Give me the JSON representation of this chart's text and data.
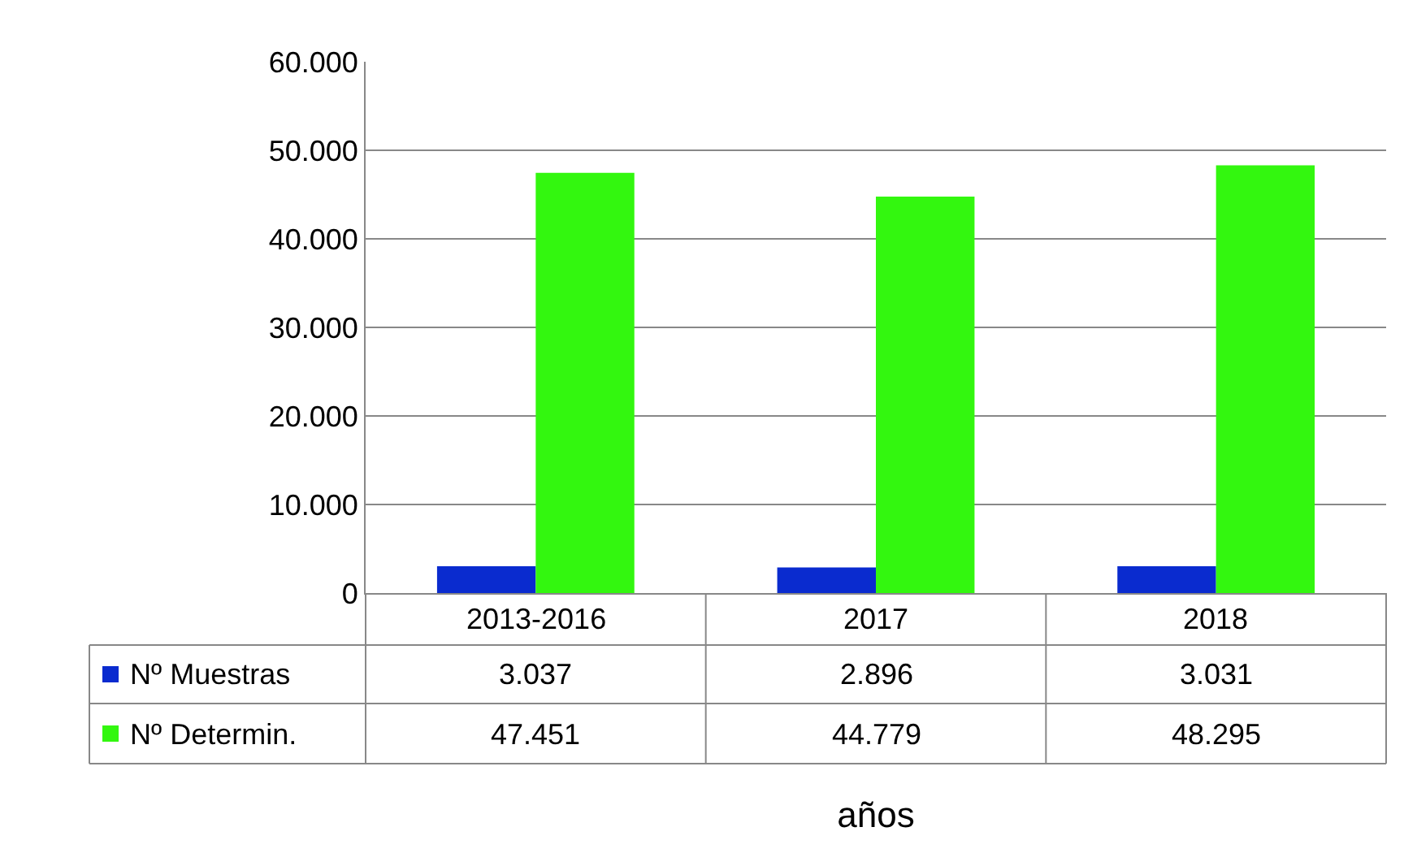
{
  "chart_data": {
    "type": "bar",
    "xlabel": "años",
    "categories": [
      "2013-2016",
      "2017",
      "2018"
    ],
    "series": [
      {
        "name": "Nº Muestras",
        "color": "#0a2bcf",
        "values": [
          3037,
          2896,
          3031
        ],
        "value_labels": [
          "3.037",
          "2.896",
          "3.031"
        ]
      },
      {
        "name": "Nº Determin.",
        "color": "#33f70f",
        "values": [
          47451,
          44779,
          48295
        ],
        "value_labels": [
          "47.451",
          "44.779",
          "48.295"
        ]
      }
    ],
    "ylim": [
      0,
      60000
    ],
    "yticks": [
      {
        "value": 0,
        "label": "0"
      },
      {
        "value": 10000,
        "label": "10.000"
      },
      {
        "value": 20000,
        "label": "20.000"
      },
      {
        "value": 30000,
        "label": "30.000"
      },
      {
        "value": 40000,
        "label": "40.000"
      },
      {
        "value": 50000,
        "label": "50.000"
      },
      {
        "value": 60000,
        "label": "60.000"
      }
    ],
    "grid": "y",
    "legend": "bottom left"
  }
}
